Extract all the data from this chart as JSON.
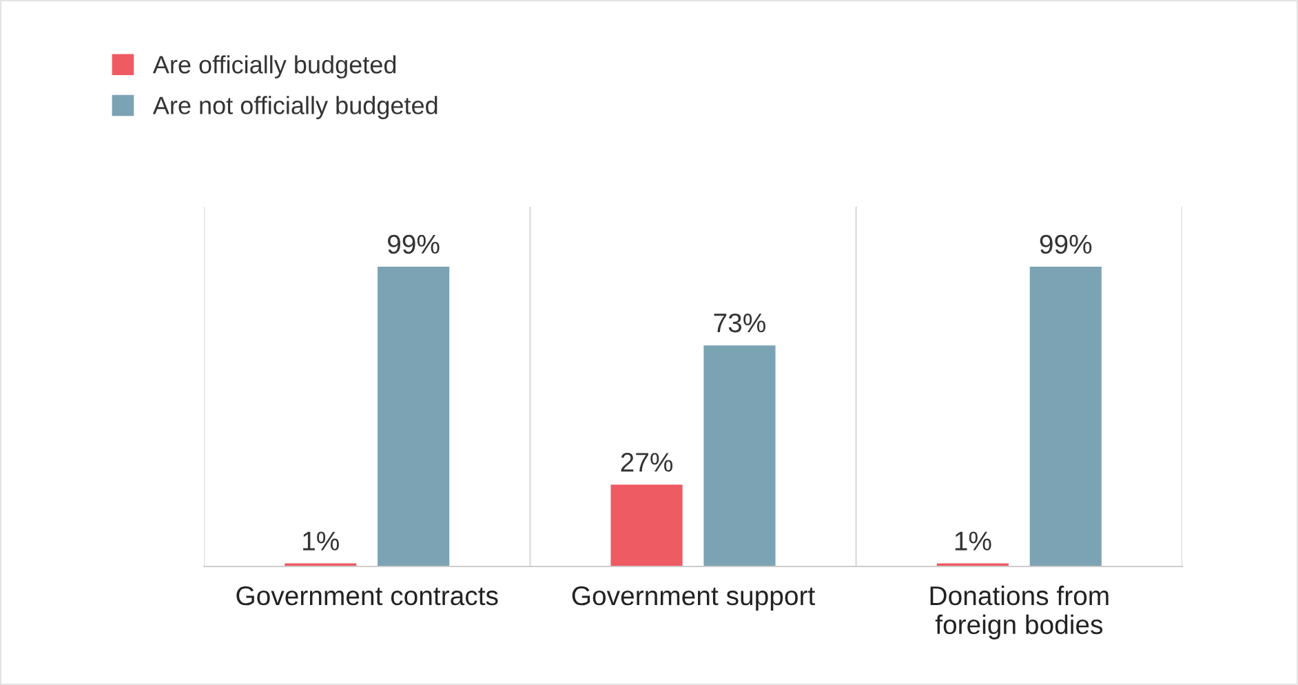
{
  "chart_data": {
    "type": "bar",
    "categories": [
      "Government contracts",
      "Government support",
      "Donations from\nforeign bodies"
    ],
    "series": [
      {
        "name": "Are officially budgeted",
        "color": "#ef5b63",
        "values": [
          1,
          27,
          1
        ],
        "value_labels": [
          "1%",
          "27%",
          "1%"
        ]
      },
      {
        "name": "Are not officially budgeted",
        "color": "#7ba3b3",
        "values": [
          99,
          73,
          99
        ],
        "value_labels": [
          "99%",
          "73%",
          "99%"
        ]
      }
    ],
    "legend": "top left",
    "grid": "x"
  }
}
